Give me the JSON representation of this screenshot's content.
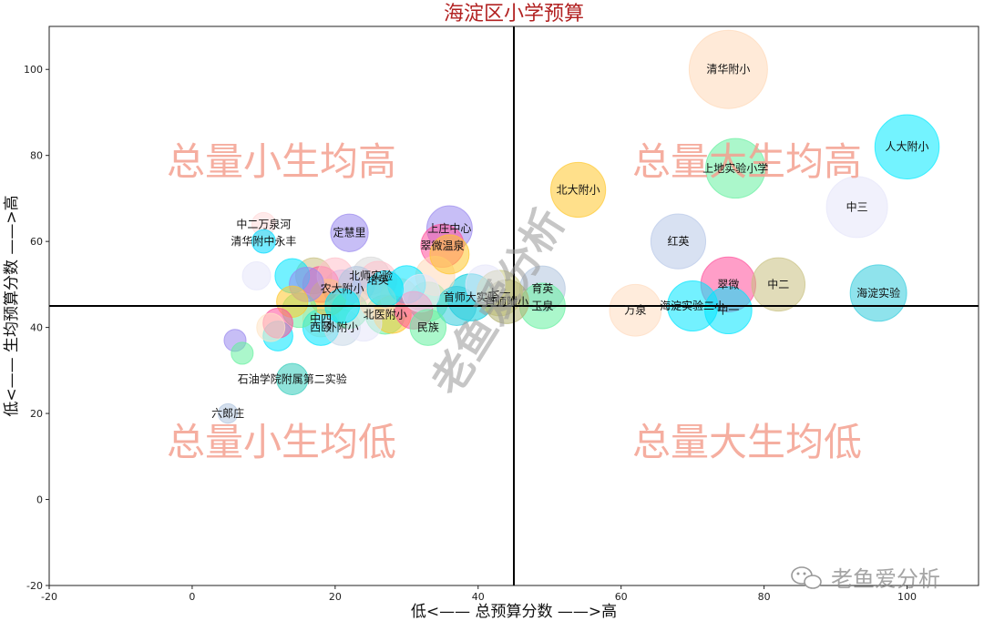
{
  "chart_data": {
    "type": "scatter",
    "title": "海淀区小学预算",
    "xlabel": "低<—— 总预算分数 ——>高",
    "ylabel": "低<—— 生均预算分数 ——>高",
    "xlim": [
      -20,
      110
    ],
    "ylim": [
      -20,
      110
    ],
    "xticks": [
      -20,
      0,
      20,
      40,
      60,
      80,
      100
    ],
    "yticks": [
      -20,
      0,
      20,
      40,
      60,
      80,
      100
    ],
    "grid": false,
    "legend": "none",
    "reference_lines": {
      "x": 45,
      "y": 45
    },
    "quadrant_labels": {
      "top_left": "总量小生均高",
      "top_right": "总量大生均高",
      "bottom_left": "总量小生均低",
      "bottom_right": "总量大生均低"
    },
    "watermark": "老鱼爱分析",
    "brand": "老鱼爱分析",
    "points": [
      {
        "label": "清华附小",
        "x": 75,
        "y": 100,
        "size": 100,
        "color": "#ffd8b8"
      },
      {
        "label": "人大附小",
        "x": 100,
        "y": 82,
        "size": 82,
        "color": "#00eaff"
      },
      {
        "label": "上地实验小学",
        "x": 76,
        "y": 77,
        "size": 76,
        "color": "#66f0a0"
      },
      {
        "label": "中三",
        "x": 93,
        "y": 68,
        "size": 78,
        "color": "#e6e6fa"
      },
      {
        "label": "北大附小",
        "x": 54,
        "y": 72,
        "size": 70,
        "color": "#ffc72c"
      },
      {
        "label": "红英",
        "x": 68,
        "y": 60,
        "size": 70,
        "color": "#b8c8e8"
      },
      {
        "label": "翠微",
        "x": 75,
        "y": 50,
        "size": 70,
        "color": "#ff4f9a"
      },
      {
        "label": "中二",
        "x": 82,
        "y": 50,
        "size": 68,
        "color": "#c8c080"
      },
      {
        "label": "海淀实验",
        "x": 96,
        "y": 48,
        "size": 72,
        "color": "#33ccdd"
      },
      {
        "label": "万泉",
        "x": 62,
        "y": 44,
        "size": 66,
        "color": "#ffdcc0"
      },
      {
        "label": "海淀实验二小",
        "x": 70,
        "y": 45,
        "size": 64,
        "color": "#00e5ff"
      },
      {
        "label": "中一",
        "x": 75,
        "y": 44,
        "size": 60,
        "color": "#00e5ff"
      },
      {
        "label": "育英",
        "x": 49,
        "y": 49,
        "size": 58,
        "color": "#b0c4de"
      },
      {
        "label": "玉泉",
        "x": 49,
        "y": 45,
        "size": 58,
        "color": "#66f0a0"
      },
      {
        "label": "七一",
        "x": 43,
        "y": 48,
        "size": 58,
        "color": "#c8c880"
      },
      {
        "label": "首师大实验",
        "x": 39,
        "y": 47,
        "size": 60,
        "color": "#00ccdd"
      },
      {
        "label": "首师附小",
        "x": 44,
        "y": 46,
        "size": 56,
        "color": "#b0b070"
      },
      {
        "label": "上庄中心",
        "x": 36,
        "y": 63,
        "size": 58,
        "color": "#9988ee"
      },
      {
        "label": "翠微温泉",
        "x": 35,
        "y": 59,
        "size": 55,
        "color": "#ff4f9a"
      },
      {
        "label": "定慧里",
        "x": 22,
        "y": 62,
        "size": 48,
        "color": "#9988ee"
      },
      {
        "label": "中二万泉河",
        "x": 10,
        "y": 64,
        "size": 30,
        "color": "#ffd8d8"
      },
      {
        "label": "清华附中永丰",
        "x": 10,
        "y": 60,
        "size": 30,
        "color": "#00d8ff"
      },
      {
        "label": "北师实验",
        "x": 25,
        "y": 52,
        "size": 48,
        "color": "#d8d8d8"
      },
      {
        "label": "培英",
        "x": 26,
        "y": 51,
        "size": 48,
        "color": "#ffc0cb"
      },
      {
        "label": "农大附小",
        "x": 21,
        "y": 49,
        "size": 48,
        "color": "#b0b0ff"
      },
      {
        "label": "北医附小",
        "x": 27,
        "y": 43,
        "size": 50,
        "color": "#66f0a0"
      },
      {
        "label": "中四",
        "x": 18,
        "y": 42,
        "size": 46,
        "color": "#ffd8b8"
      },
      {
        "label": "西颐",
        "x": 18,
        "y": 40,
        "size": 46,
        "color": "#00e5ff"
      },
      {
        "label": "外附小",
        "x": 21,
        "y": 40,
        "size": 46,
        "color": "#c8d8e8"
      },
      {
        "label": "民族",
        "x": 33,
        "y": 40,
        "size": 46,
        "color": "#66f0a0"
      },
      {
        "label": "石油学院附属第二实验",
        "x": 14,
        "y": 28,
        "size": 40,
        "color": "#33ccbb"
      },
      {
        "label": "六郎庄",
        "x": 5,
        "y": 20,
        "size": 25,
        "color": "#b0c4de"
      },
      {
        "label": "",
        "x": 6,
        "y": 37,
        "size": 28,
        "color": "#9988ee"
      },
      {
        "label": "",
        "x": 7,
        "y": 34,
        "size": 28,
        "color": "#66f0a0"
      },
      {
        "label": "",
        "x": 9,
        "y": 52,
        "size": 36,
        "color": "#e6e6fa"
      },
      {
        "label": "",
        "x": 11,
        "y": 40,
        "size": 36,
        "color": "#ffe4c4"
      },
      {
        "label": "",
        "x": 12,
        "y": 38,
        "size": 38,
        "color": "#00e5ff"
      },
      {
        "label": "",
        "x": 12,
        "y": 41,
        "size": 38,
        "color": "#ff4f9a"
      },
      {
        "label": "",
        "x": 14,
        "y": 52,
        "size": 44,
        "color": "#00e5ff"
      },
      {
        "label": "",
        "x": 14,
        "y": 46,
        "size": 40,
        "color": "#ffc72c"
      },
      {
        "label": "",
        "x": 15,
        "y": 44,
        "size": 44,
        "color": "#66f0a0"
      },
      {
        "label": "",
        "x": 16,
        "y": 50,
        "size": 44,
        "color": "#9988ee"
      },
      {
        "label": "",
        "x": 17,
        "y": 52,
        "size": 46,
        "color": "#c8c080"
      },
      {
        "label": "",
        "x": 18,
        "y": 50,
        "size": 46,
        "color": "#ff4f9a"
      },
      {
        "label": "",
        "x": 19,
        "y": 47,
        "size": 46,
        "color": "#ffc72c"
      },
      {
        "label": "",
        "x": 20,
        "y": 52,
        "size": 46,
        "color": "#ffc0cb"
      },
      {
        "label": "",
        "x": 21,
        "y": 45,
        "size": 44,
        "color": "#00e5ff"
      },
      {
        "label": "",
        "x": 22,
        "y": 44,
        "size": 46,
        "color": "#66f0a0"
      },
      {
        "label": "",
        "x": 23,
        "y": 50,
        "size": 46,
        "color": "#b0c4de"
      },
      {
        "label": "",
        "x": 24,
        "y": 41,
        "size": 46,
        "color": "#e6e6fa"
      },
      {
        "label": "",
        "x": 26,
        "y": 46,
        "size": 46,
        "color": "#ffd8b8"
      },
      {
        "label": "",
        "x": 27,
        "y": 49,
        "size": 46,
        "color": "#00e5ff"
      },
      {
        "label": "",
        "x": 28,
        "y": 43,
        "size": 48,
        "color": "#ffc72c"
      },
      {
        "label": "",
        "x": 29,
        "y": 47,
        "size": 48,
        "color": "#ffd8b8"
      },
      {
        "label": "",
        "x": 30,
        "y": 50,
        "size": 48,
        "color": "#00e5ff"
      },
      {
        "label": "",
        "x": 31,
        "y": 44,
        "size": 48,
        "color": "#ff4f9a"
      },
      {
        "label": "",
        "x": 32,
        "y": 48,
        "size": 48,
        "color": "#e6e6fa"
      },
      {
        "label": "",
        "x": 33,
        "y": 46,
        "size": 50,
        "color": "#66f0a0"
      },
      {
        "label": "",
        "x": 34,
        "y": 52,
        "size": 50,
        "color": "#ffd8b8"
      },
      {
        "label": "",
        "x": 36,
        "y": 57,
        "size": 50,
        "color": "#ffc72c"
      },
      {
        "label": "",
        "x": 37,
        "y": 45,
        "size": 50,
        "color": "#33ccdd"
      },
      {
        "label": "",
        "x": 41,
        "y": 50,
        "size": 50,
        "color": "#e6e6fa"
      }
    ]
  }
}
